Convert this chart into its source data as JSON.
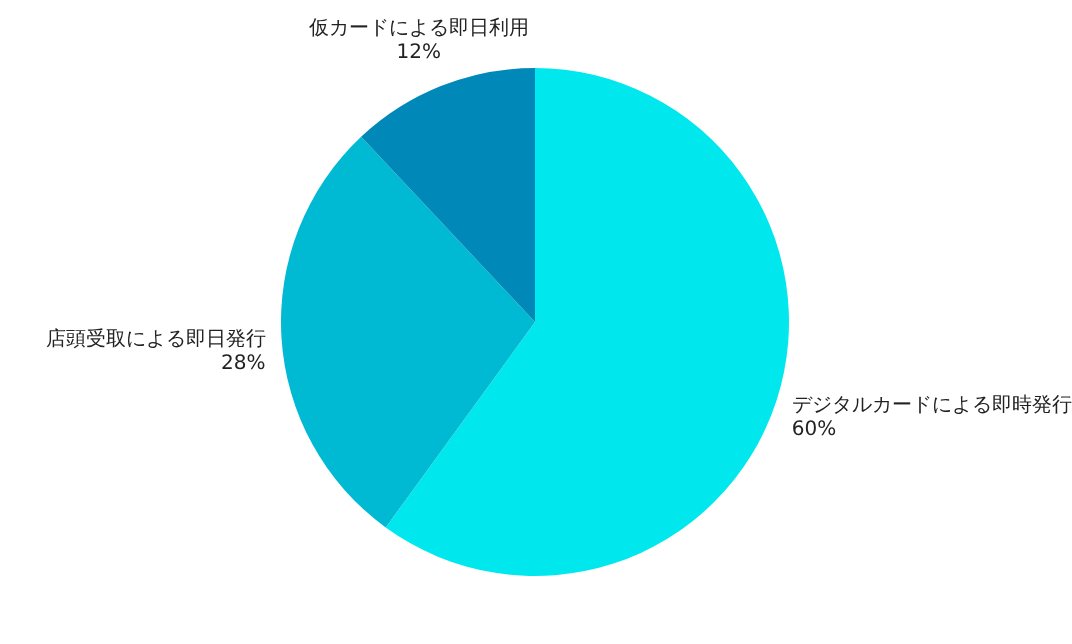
{
  "chart_data": {
    "type": "pie",
    "categories": [
      "デジタルカードによる即時発行",
      "店頭受取による即日発行",
      "仮カードによる即日利用"
    ],
    "values": [
      60,
      28,
      12
    ],
    "value_labels": [
      "60%",
      "28%",
      "12%"
    ],
    "colors": [
      "#00e8ee",
      "#00b9d3",
      "#0089b8"
    ],
    "legend": false
  }
}
